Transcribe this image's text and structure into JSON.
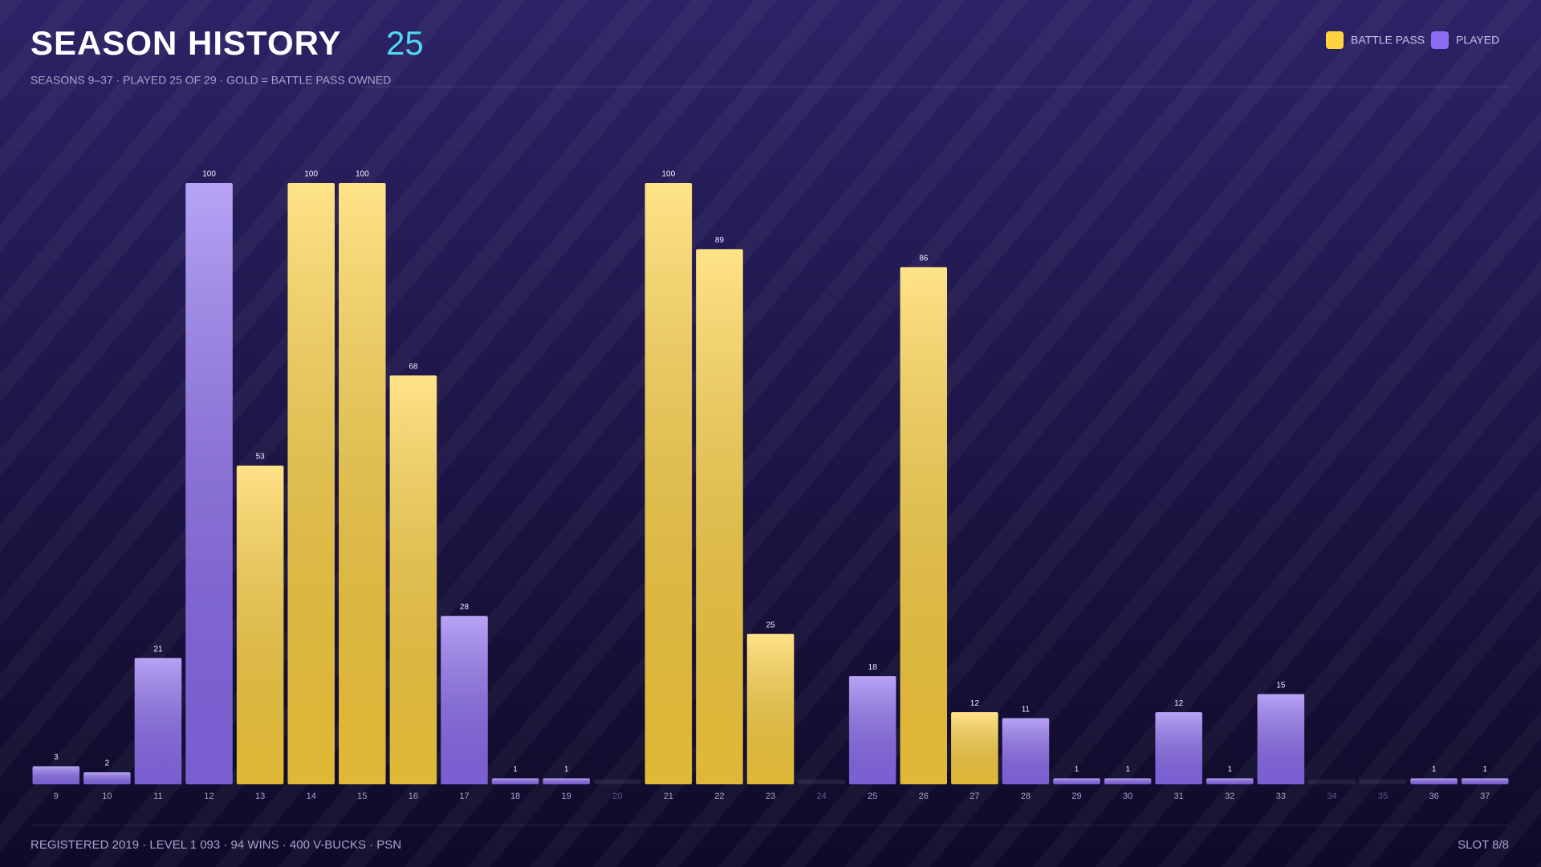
{
  "chart_data": {
    "type": "bar",
    "title": "SEASON HISTORY",
    "title_count": "25",
    "subtitle": "SEASONS 9–37  ·  PLAYED 25 OF 29  ·  GOLD = BATTLE PASS OWNED",
    "footer_left": "REGISTERED 2019  ·  LEVEL 1 093  ·  94 WINS  ·  400 V-BUCKS  ·  PSN",
    "footer_right": "SLOT 8/8",
    "categories": [
      "9",
      "10",
      "11",
      "12",
      "13",
      "14",
      "15",
      "16",
      "17",
      "18",
      "19",
      "20",
      "21",
      "22",
      "23",
      "24",
      "25",
      "26",
      "27",
      "28",
      "29",
      "30",
      "31",
      "32",
      "33",
      "34",
      "35",
      "36",
      "37"
    ],
    "series": [
      {
        "name": "BATTLE PASS",
        "color": "#ffd23f",
        "values": [
          null,
          null,
          null,
          null,
          53,
          100,
          100,
          68,
          null,
          null,
          null,
          null,
          100,
          89,
          25,
          null,
          null,
          86,
          12,
          null,
          null,
          null,
          null,
          null,
          null,
          null,
          null,
          null,
          null
        ]
      },
      {
        "name": "PLAYED",
        "color": "#8b6cf0",
        "values": [
          3,
          2,
          21,
          100,
          null,
          null,
          null,
          null,
          28,
          1,
          1,
          null,
          null,
          null,
          null,
          null,
          18,
          null,
          null,
          11,
          1,
          1,
          12,
          1,
          15,
          null,
          null,
          1,
          1
        ]
      }
    ],
    "ylim": [
      0,
      100
    ],
    "legend": "top-right"
  }
}
